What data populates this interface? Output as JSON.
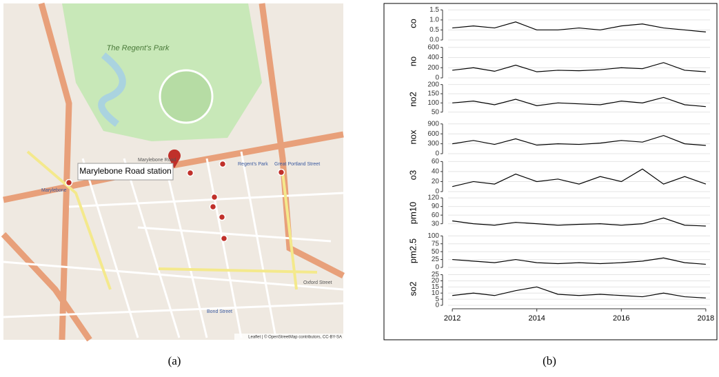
{
  "map": {
    "park_label": "The Regent's Park",
    "popup": "Marylebone Road station",
    "labels": [
      "Marylebone",
      "Great Portland Street",
      "Oxford Street",
      "Bond Street",
      "Regent's Park",
      "Marylebone Road"
    ],
    "attribution": "Leaflet | © OpenStreetMap contributors, CC-BY-SA"
  },
  "chart_data": {
    "type": "line",
    "x": [
      2012,
      2012.5,
      2013,
      2013.5,
      2014,
      2014.5,
      2015,
      2015.5,
      2016,
      2016.5,
      2017,
      2017.5,
      2018
    ],
    "xlim": [
      2011.9,
      2018.1
    ],
    "xticks": [
      2012,
      2014,
      2016,
      2018
    ],
    "series": [
      {
        "name": "co",
        "color": "#000000",
        "ylim": [
          0,
          1.65
        ],
        "yticks": [
          {
            "value": 0,
            "label": "0.0"
          },
          {
            "value": 0.5,
            "label": "0.5"
          },
          {
            "value": 1,
            "label": "1.0"
          },
          {
            "value": 1.5,
            "label": "1.5"
          }
        ],
        "values": [
          0.6,
          0.7,
          0.6,
          0.9,
          0.5,
          0.5,
          0.6,
          0.5,
          0.7,
          0.8,
          0.6,
          0.5,
          0.4
        ]
      },
      {
        "name": "no",
        "color": "#000000",
        "ylim": [
          0,
          650
        ],
        "yticks": [
          0,
          200,
          400,
          600
        ],
        "values": [
          150,
          200,
          130,
          250,
          120,
          150,
          140,
          160,
          200,
          180,
          300,
          150,
          120
        ]
      },
      {
        "name": "no2",
        "color": "#000000",
        "ylim": [
          30,
          210
        ],
        "yticks": [
          50,
          100,
          150,
          200
        ],
        "values": [
          100,
          110,
          90,
          120,
          85,
          100,
          95,
          90,
          110,
          100,
          130,
          90,
          80
        ]
      },
      {
        "name": "nox",
        "color": "#000000",
        "ylim": [
          0,
          1000
        ],
        "yticks": [
          0,
          300,
          600,
          900
        ],
        "values": [
          300,
          400,
          280,
          450,
          260,
          300,
          280,
          320,
          400,
          350,
          550,
          300,
          250
        ]
      },
      {
        "name": "o3",
        "color": "#000000",
        "ylim": [
          0,
          66
        ],
        "yticks": [
          0,
          20,
          40,
          60
        ],
        "values": [
          10,
          20,
          15,
          35,
          20,
          25,
          15,
          30,
          20,
          45,
          15,
          30,
          15
        ]
      },
      {
        "name": "pm10",
        "color": "#000000",
        "ylim": [
          10,
          125
        ],
        "yticks": [
          30,
          60,
          90,
          120
        ],
        "values": [
          40,
          30,
          25,
          35,
          30,
          25,
          28,
          30,
          25,
          30,
          50,
          25,
          22
        ]
      },
      {
        "name": "pm2.5",
        "color": "#000000",
        "ylim": [
          0,
          105
        ],
        "yticks": [
          0,
          25,
          50,
          75,
          100
        ],
        "values": [
          25,
          20,
          15,
          25,
          15,
          12,
          15,
          12,
          15,
          20,
          30,
          15,
          10
        ]
      },
      {
        "name": "so2",
        "color": "#000000",
        "ylim": [
          0,
          27
        ],
        "yticks": [
          0,
          5,
          10,
          15,
          20,
          25
        ],
        "values": [
          8,
          10,
          8,
          12,
          15,
          9,
          8,
          9,
          8,
          7,
          10,
          7,
          6
        ]
      }
    ]
  },
  "captions": [
    "(a)",
    "(b)"
  ]
}
